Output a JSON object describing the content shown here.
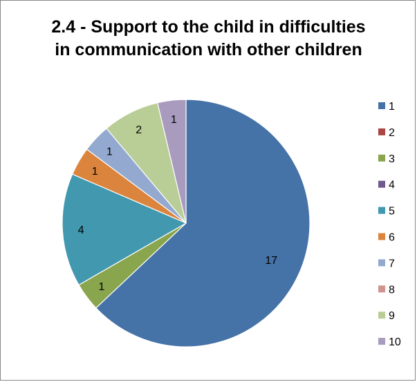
{
  "chart_data": {
    "type": "pie",
    "title_lines": [
      "2.4 - Support to the child in difficulties",
      "in communication with other children"
    ],
    "categories": [
      "1",
      "2",
      "3",
      "4",
      "5",
      "6",
      "7",
      "8",
      "9",
      "10"
    ],
    "values": [
      17,
      0,
      1,
      0,
      4,
      1,
      1,
      0,
      2,
      1
    ],
    "data_labels": [
      "17",
      "",
      "1",
      "",
      "4",
      "1",
      "1",
      "",
      "2",
      "1"
    ],
    "colors": [
      "#4572A7",
      "#AA4643",
      "#89A54E",
      "#71588F",
      "#4198AF",
      "#DB843D",
      "#93A9CF",
      "#D19392",
      "#B9CD96",
      "#A99BBD"
    ],
    "start_angle_deg": 0,
    "direction": "clockwise",
    "legend_position": "right"
  }
}
